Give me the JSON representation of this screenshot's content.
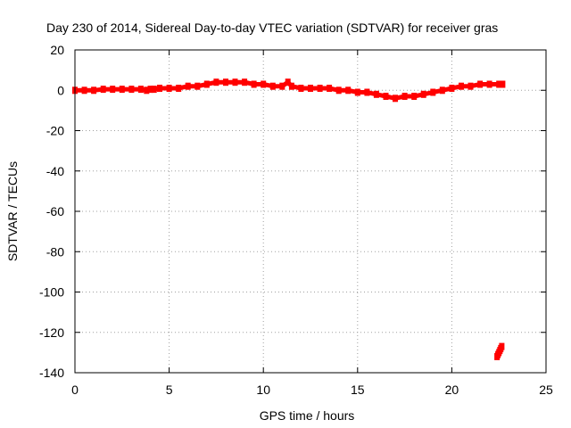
{
  "chart_data": {
    "type": "scatter",
    "title": "Day 230 of 2014, Sidereal Day-to-day VTEC variation (SDTVAR) for receiver gras",
    "xlabel": "GPS time / hours",
    "ylabel": "SDTVAR / TECUs",
    "xlim": [
      0,
      25
    ],
    "ylim": [
      -140,
      20
    ],
    "xticks": [
      0,
      5,
      10,
      15,
      20,
      25
    ],
    "yticks": [
      20,
      0,
      -20,
      -40,
      -60,
      -80,
      -100,
      -120,
      -140
    ],
    "grid": true,
    "marker_color": "#ff0000",
    "series": [
      {
        "name": "main",
        "x": [
          0.0,
          0.5,
          1.0,
          1.5,
          2.0,
          2.5,
          3.0,
          3.5,
          3.8,
          4.0,
          4.2,
          4.5,
          5.0,
          5.5,
          6.0,
          6.5,
          7.0,
          7.5,
          8.0,
          8.5,
          9.0,
          9.5,
          10.0,
          10.5,
          11.0,
          11.3,
          11.5,
          12.0,
          12.5,
          13.0,
          13.5,
          14.0,
          14.5,
          15.0,
          15.5,
          16.0,
          16.5,
          17.0,
          17.5,
          18.0,
          18.5,
          19.0,
          19.5,
          20.0,
          20.5,
          21.0,
          21.5,
          22.0,
          22.5,
          22.7
        ],
        "y": [
          0,
          0,
          0,
          0.5,
          0.5,
          0.5,
          0.5,
          0.5,
          0,
          0.5,
          0.5,
          1,
          1,
          1,
          2,
          2,
          3,
          4,
          4,
          4,
          4,
          3,
          3,
          2,
          2,
          4,
          2,
          1,
          1,
          1,
          1,
          0,
          0,
          -1,
          -1,
          -2,
          -3,
          -4,
          -3,
          -3,
          -2,
          -1,
          0,
          1,
          2,
          2,
          3,
          3,
          3,
          3
        ]
      },
      {
        "name": "outlier",
        "x": [
          22.4,
          22.45,
          22.5,
          22.55,
          22.6,
          22.65
        ],
        "y": [
          -132,
          -131,
          -130,
          -129,
          -128,
          -127
        ]
      }
    ]
  }
}
